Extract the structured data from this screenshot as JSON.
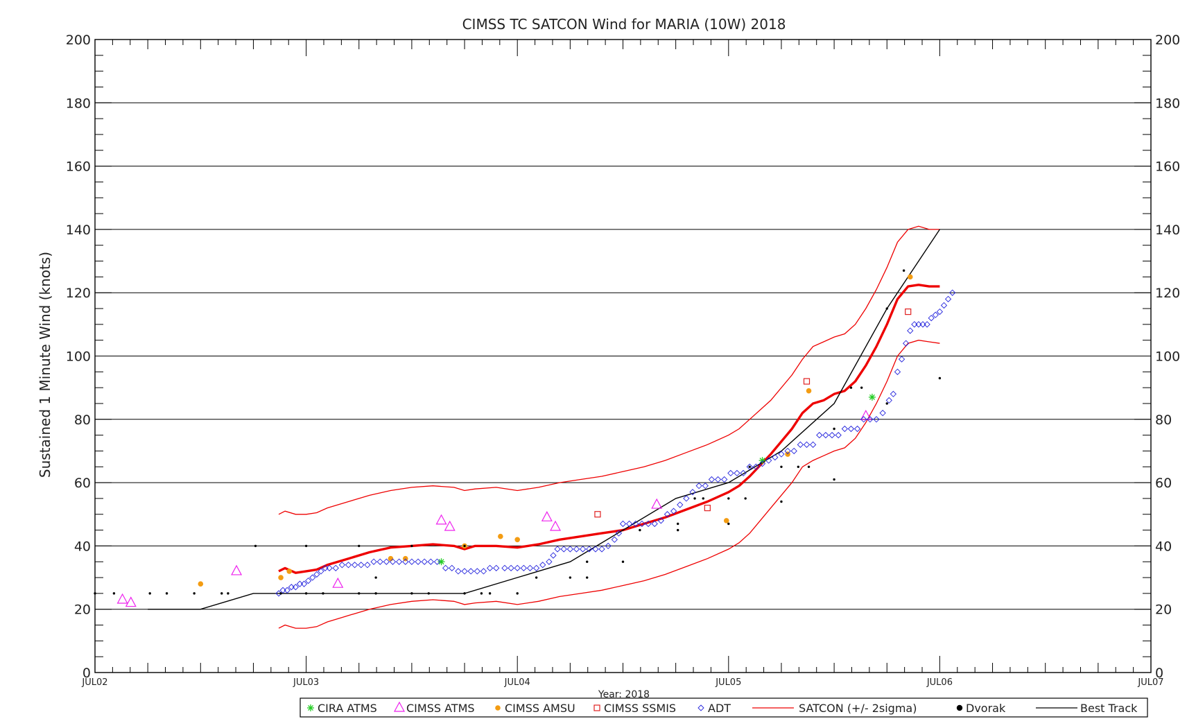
{
  "chart_data": {
    "type": "scatter",
    "title": "CIMSS TC SATCON Wind for MARIA (10W) 2018",
    "xlabel": "Year: 2018",
    "ylabel": "Sustained 1 Minute Wind (knots)",
    "ylim": [
      0,
      200
    ],
    "yticks": [
      0,
      20,
      40,
      60,
      80,
      100,
      120,
      140,
      160,
      180,
      200
    ],
    "xlim": [
      0,
      5
    ],
    "xticks": [
      {
        "x": 0,
        "label": "JUL02"
      },
      {
        "x": 1,
        "label": "JUL03"
      },
      {
        "x": 2,
        "label": "JUL04"
      },
      {
        "x": 3,
        "label": "JUL05"
      },
      {
        "x": 4,
        "label": "JUL06"
      },
      {
        "x": 5,
        "label": "JUL07"
      }
    ],
    "grid": "horizontal",
    "legend_position": "bottom",
    "colors": {
      "cira_atms": "#22cc22",
      "cimss_atms": "#ee22ee",
      "cimss_amsu": "#f39c12",
      "cimss_ssmis": "#e02020",
      "adt": "#2222dd",
      "satcon": "#ee0000",
      "dvorak": "#000000",
      "best_track": "#000000"
    },
    "series": [
      {
        "name": "CIRA ATMS",
        "marker": "asterisk",
        "points": [
          [
            1.64,
            35
          ],
          [
            3.16,
            67
          ],
          [
            3.68,
            87
          ]
        ]
      },
      {
        "name": "CIMSS ATMS",
        "marker": "triangle",
        "points": [
          [
            0.13,
            23
          ],
          [
            0.17,
            22
          ],
          [
            0.67,
            32
          ],
          [
            1.15,
            28
          ],
          [
            1.64,
            48
          ],
          [
            1.68,
            46
          ],
          [
            2.14,
            49
          ],
          [
            2.18,
            46
          ],
          [
            2.66,
            53
          ],
          [
            3.65,
            81
          ]
        ]
      },
      {
        "name": "CIMSS AMSU",
        "marker": "dot",
        "points": [
          [
            0.5,
            28
          ],
          [
            0.88,
            30
          ],
          [
            0.92,
            32
          ],
          [
            1.4,
            36
          ],
          [
            1.47,
            36
          ],
          [
            1.75,
            40
          ],
          [
            1.92,
            43
          ],
          [
            2.0,
            42
          ],
          [
            2.99,
            48
          ],
          [
            3.28,
            69
          ],
          [
            3.38,
            89
          ],
          [
            3.86,
            125
          ]
        ]
      },
      {
        "name": "CIMSS SSMIS",
        "marker": "square",
        "points": [
          [
            2.38,
            50
          ],
          [
            2.9,
            52
          ],
          [
            3.37,
            92
          ],
          [
            3.85,
            114
          ]
        ]
      },
      {
        "name": "ADT",
        "marker": "diamond",
        "points": [
          [
            0.87,
            25
          ],
          [
            0.89,
            26
          ],
          [
            0.91,
            26
          ],
          [
            0.93,
            27
          ],
          [
            0.95,
            27
          ],
          [
            0.97,
            28
          ],
          [
            0.99,
            28
          ],
          [
            1.01,
            29
          ],
          [
            1.03,
            30
          ],
          [
            1.05,
            31
          ],
          [
            1.07,
            32
          ],
          [
            1.09,
            33
          ],
          [
            1.11,
            33
          ],
          [
            1.14,
            33
          ],
          [
            1.17,
            34
          ],
          [
            1.2,
            34
          ],
          [
            1.23,
            34
          ],
          [
            1.26,
            34
          ],
          [
            1.29,
            34
          ],
          [
            1.32,
            35
          ],
          [
            1.35,
            35
          ],
          [
            1.38,
            35
          ],
          [
            1.41,
            35
          ],
          [
            1.44,
            35
          ],
          [
            1.47,
            35
          ],
          [
            1.5,
            35
          ],
          [
            1.53,
            35
          ],
          [
            1.56,
            35
          ],
          [
            1.59,
            35
          ],
          [
            1.62,
            35
          ],
          [
            1.66,
            33
          ],
          [
            1.69,
            33
          ],
          [
            1.72,
            32
          ],
          [
            1.75,
            32
          ],
          [
            1.78,
            32
          ],
          [
            1.81,
            32
          ],
          [
            1.84,
            32
          ],
          [
            1.87,
            33
          ],
          [
            1.9,
            33
          ],
          [
            1.94,
            33
          ],
          [
            1.97,
            33
          ],
          [
            2.0,
            33
          ],
          [
            2.03,
            33
          ],
          [
            2.06,
            33
          ],
          [
            2.09,
            33
          ],
          [
            2.12,
            34
          ],
          [
            2.15,
            35
          ],
          [
            2.17,
            37
          ],
          [
            2.19,
            39
          ],
          [
            2.22,
            39
          ],
          [
            2.25,
            39
          ],
          [
            2.28,
            39
          ],
          [
            2.31,
            39
          ],
          [
            2.34,
            39
          ],
          [
            2.37,
            39
          ],
          [
            2.4,
            39
          ],
          [
            2.43,
            40
          ],
          [
            2.46,
            42
          ],
          [
            2.48,
            44
          ],
          [
            2.5,
            47
          ],
          [
            2.53,
            47
          ],
          [
            2.56,
            47
          ],
          [
            2.59,
            47
          ],
          [
            2.62,
            47
          ],
          [
            2.65,
            47
          ],
          [
            2.68,
            48
          ],
          [
            2.71,
            50
          ],
          [
            2.74,
            51
          ],
          [
            2.77,
            53
          ],
          [
            2.8,
            55
          ],
          [
            2.83,
            57
          ],
          [
            2.86,
            59
          ],
          [
            2.89,
            59
          ],
          [
            2.92,
            61
          ],
          [
            2.95,
            61
          ],
          [
            2.98,
            61
          ],
          [
            3.01,
            63
          ],
          [
            3.04,
            63
          ],
          [
            3.07,
            63
          ],
          [
            3.1,
            65
          ],
          [
            3.13,
            65
          ],
          [
            3.16,
            66
          ],
          [
            3.19,
            67
          ],
          [
            3.22,
            68
          ],
          [
            3.25,
            69
          ],
          [
            3.28,
            70
          ],
          [
            3.31,
            70
          ],
          [
            3.34,
            72
          ],
          [
            3.37,
            72
          ],
          [
            3.4,
            72
          ],
          [
            3.43,
            75
          ],
          [
            3.46,
            75
          ],
          [
            3.49,
            75
          ],
          [
            3.52,
            75
          ],
          [
            3.55,
            77
          ],
          [
            3.58,
            77
          ],
          [
            3.61,
            77
          ],
          [
            3.64,
            80
          ],
          [
            3.67,
            80
          ],
          [
            3.7,
            80
          ],
          [
            3.73,
            82
          ],
          [
            3.76,
            86
          ],
          [
            3.78,
            88
          ],
          [
            3.8,
            95
          ],
          [
            3.82,
            99
          ],
          [
            3.84,
            104
          ],
          [
            3.86,
            108
          ],
          [
            3.88,
            110
          ],
          [
            3.9,
            110
          ],
          [
            3.92,
            110
          ],
          [
            3.94,
            110
          ],
          [
            3.96,
            112
          ],
          [
            3.98,
            113
          ],
          [
            4.0,
            114
          ],
          [
            4.02,
            116
          ],
          [
            4.04,
            118
          ],
          [
            4.06,
            120
          ]
        ]
      },
      {
        "name": "SATCON (+/- 2sigma)",
        "marker": "line",
        "x": [
          0.87,
          0.9,
          0.95,
          1.0,
          1.05,
          1.1,
          1.2,
          1.3,
          1.4,
          1.5,
          1.6,
          1.7,
          1.75,
          1.8,
          1.9,
          2.0,
          2.1,
          2.2,
          2.3,
          2.4,
          2.5,
          2.6,
          2.7,
          2.8,
          2.9,
          3.0,
          3.05,
          3.1,
          3.2,
          3.3,
          3.35,
          3.4,
          3.45,
          3.5,
          3.55,
          3.6,
          3.65,
          3.7,
          3.75,
          3.8,
          3.85,
          3.9,
          3.95,
          4.0
        ],
        "mean": [
          32,
          33,
          31.5,
          32,
          32.5,
          34,
          36,
          38,
          39.5,
          40,
          40.5,
          40,
          39,
          40,
          40,
          39.5,
          40.5,
          42,
          43,
          44,
          45,
          47,
          49,
          51.5,
          54,
          57,
          59,
          62,
          69,
          77,
          82,
          85,
          86,
          88,
          89,
          92,
          97,
          103,
          110,
          118,
          122,
          122.5,
          122,
          122
        ],
        "upper": [
          50,
          51,
          50,
          50,
          50.5,
          52,
          54,
          56,
          57.5,
          58.5,
          59,
          58.5,
          57.5,
          58,
          58.5,
          57.5,
          58.5,
          60,
          61,
          62,
          63.5,
          65,
          67,
          69.5,
          72,
          75,
          77,
          80,
          86,
          94,
          99,
          103,
          104.5,
          106,
          107,
          110,
          115,
          121,
          128,
          136,
          140,
          141,
          140,
          140
        ],
        "lower": [
          14,
          15,
          14,
          14,
          14.5,
          16,
          18,
          20,
          21.5,
          22.5,
          23,
          22.5,
          21.5,
          22,
          22.5,
          21.5,
          22.5,
          24,
          25,
          26,
          27.5,
          29,
          31,
          33.5,
          36,
          39,
          41,
          44,
          52,
          60,
          65,
          67,
          68.5,
          70,
          71,
          74,
          79,
          85,
          92,
          100,
          104,
          105,
          104.5,
          104
        ]
      },
      {
        "name": "Dvorak",
        "marker": "smalldot",
        "points": [
          [
            0.0,
            25
          ],
          [
            0.09,
            25
          ],
          [
            0.26,
            25
          ],
          [
            0.34,
            25
          ],
          [
            0.47,
            25
          ],
          [
            0.6,
            25
          ],
          [
            0.63,
            25
          ],
          [
            0.76,
            40
          ],
          [
            0.88,
            25
          ],
          [
            1.0,
            40
          ],
          [
            1.0,
            25
          ],
          [
            1.08,
            25
          ],
          [
            1.25,
            40
          ],
          [
            1.25,
            25
          ],
          [
            1.33,
            30
          ],
          [
            1.33,
            25
          ],
          [
            1.5,
            40
          ],
          [
            1.5,
            25
          ],
          [
            1.58,
            25
          ],
          [
            1.75,
            40
          ],
          [
            1.75,
            25
          ],
          [
            1.83,
            25
          ],
          [
            1.87,
            25
          ],
          [
            2.0,
            25
          ],
          [
            2.09,
            30
          ],
          [
            2.25,
            30
          ],
          [
            2.33,
            35
          ],
          [
            2.33,
            30
          ],
          [
            2.5,
            35
          ],
          [
            2.58,
            45
          ],
          [
            2.76,
            47
          ],
          [
            2.76,
            45
          ],
          [
            2.84,
            55
          ],
          [
            2.88,
            55
          ],
          [
            3.0,
            55
          ],
          [
            3.0,
            47
          ],
          [
            3.08,
            55
          ],
          [
            3.1,
            65
          ],
          [
            3.25,
            54
          ],
          [
            3.25,
            65
          ],
          [
            3.33,
            65
          ],
          [
            3.38,
            65
          ],
          [
            3.5,
            77
          ],
          [
            3.5,
            61
          ],
          [
            3.58,
            90
          ],
          [
            3.63,
            90
          ],
          [
            3.75,
            115
          ],
          [
            3.75,
            85
          ],
          [
            3.83,
            127
          ],
          [
            4.0,
            93
          ]
        ]
      },
      {
        "name": "Best Track",
        "marker": "line",
        "x": [
          0.25,
          0.5,
          0.75,
          1.0,
          1.25,
          1.5,
          1.75,
          2.0,
          2.25,
          2.5,
          2.75,
          3.0,
          3.25,
          3.5,
          3.75,
          4.0
        ],
        "y": [
          20,
          20,
          25,
          25,
          25,
          25,
          25,
          30,
          35,
          45,
          55,
          60,
          70,
          85,
          115,
          140
        ]
      }
    ]
  }
}
